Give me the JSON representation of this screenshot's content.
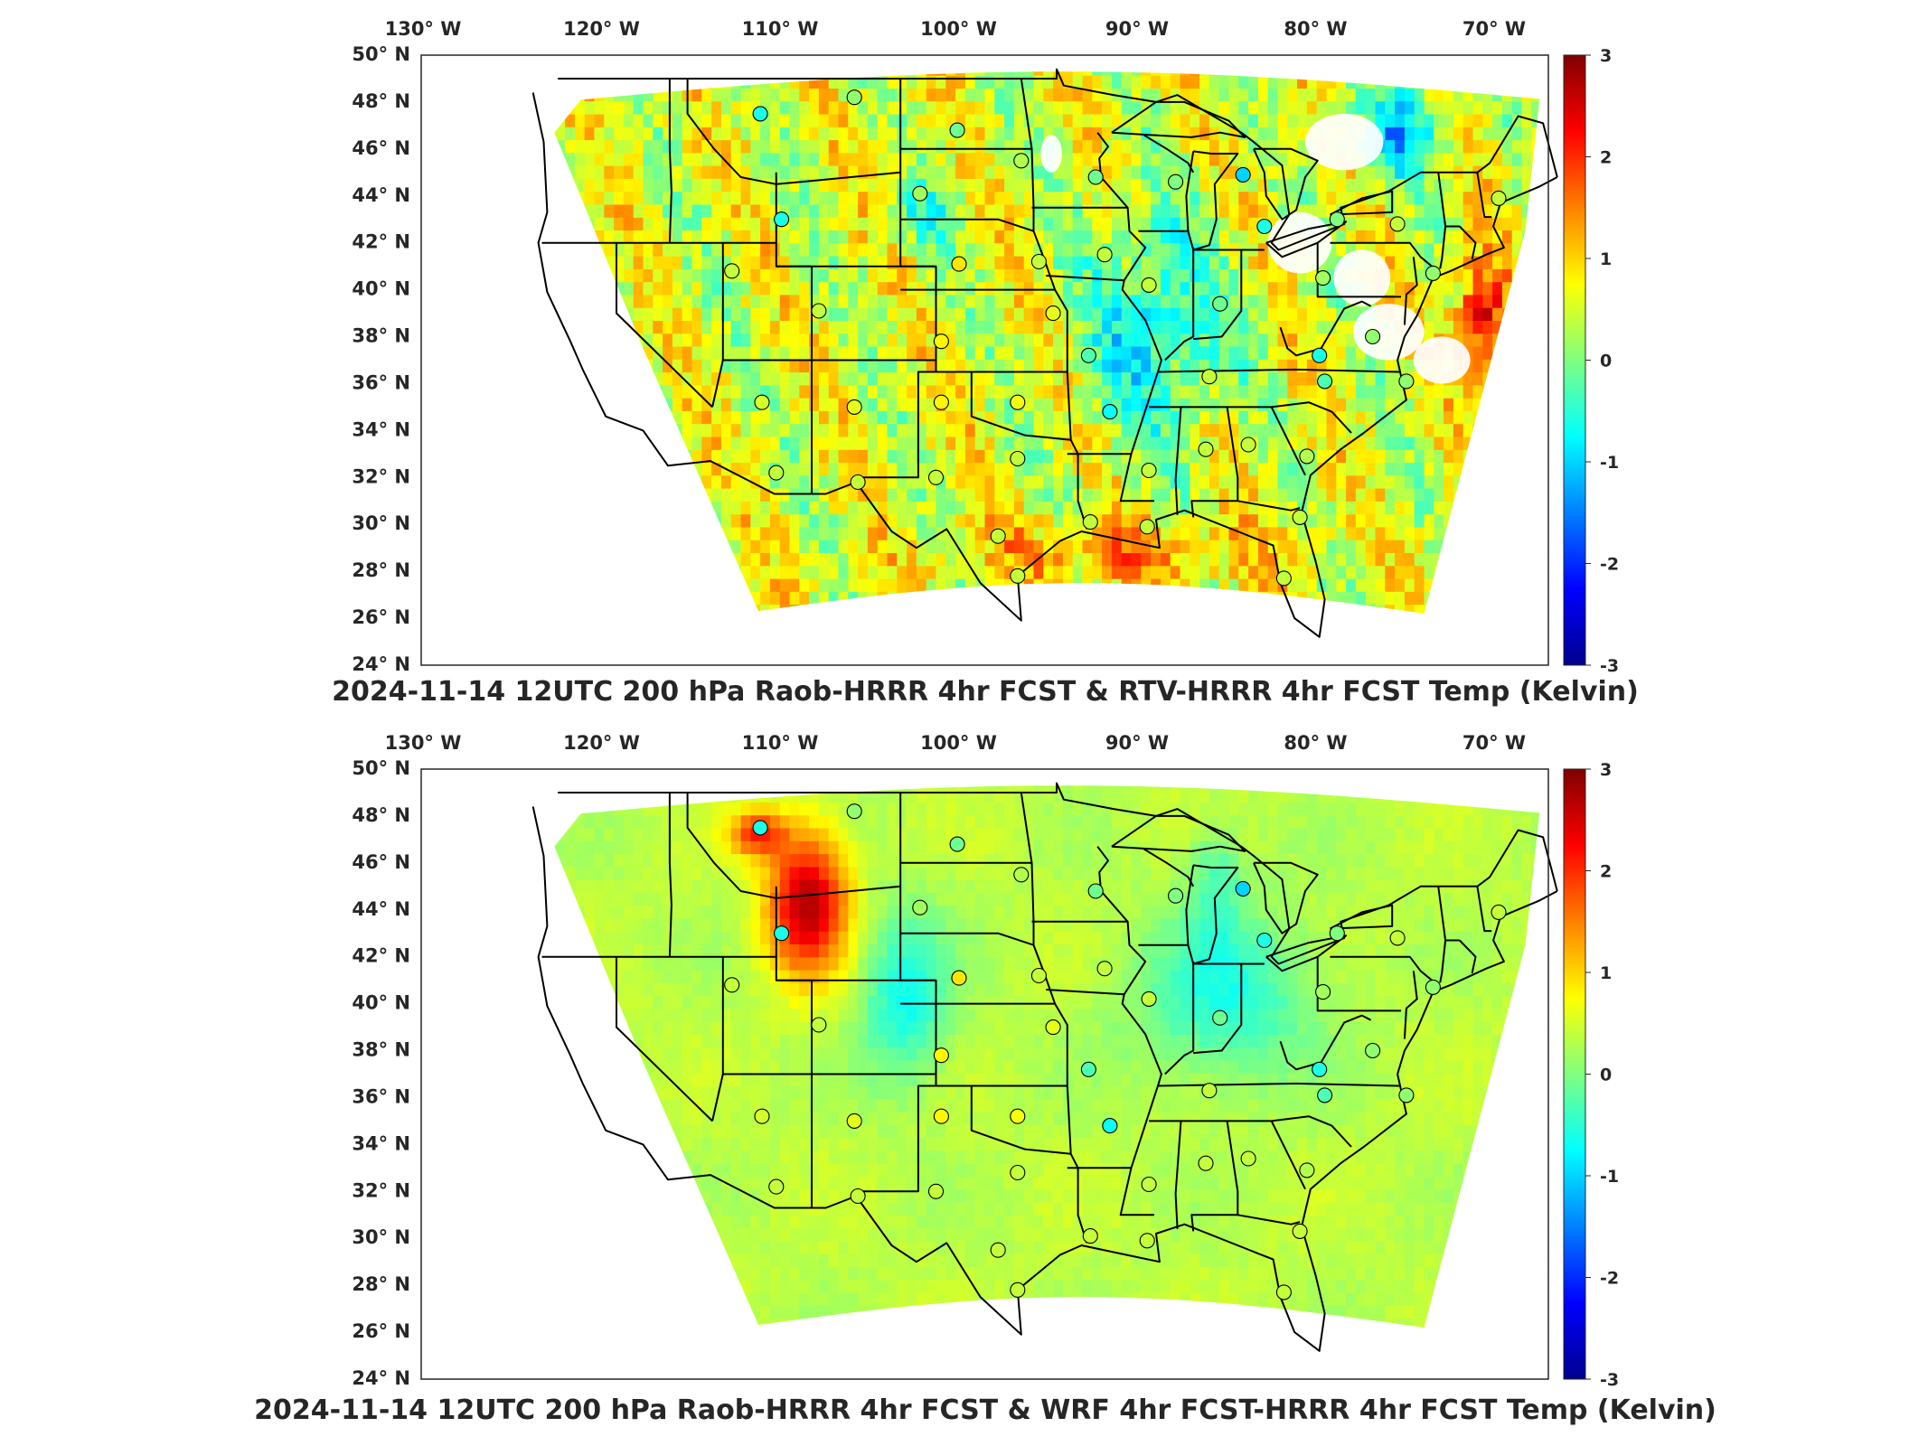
{
  "colormap": {
    "name": "jet",
    "stops": [
      "#00008f",
      "#0000ff",
      "#0080ff",
      "#00ffff",
      "#80ff80",
      "#ffff00",
      "#ff8000",
      "#ff0000",
      "#800000"
    ],
    "land_mask": "#ffffff",
    "border_color": "#000000"
  },
  "maps": [
    {
      "id": "top",
      "title": "2024-11-14 12UTC 200 hPa Raob-HRRR 4hr FCST & RTV-HRRR 4hr FCST Temp (Kelvin)",
      "lon_ticks": [
        "130° W",
        "120° W",
        "110° W",
        "100° W",
        "90° W",
        "80° W",
        "70° W"
      ],
      "lat_ticks": [
        "50° N",
        "48° N",
        "46° N",
        "44° N",
        "42° N",
        "40° N",
        "38° N",
        "36° N",
        "34° N",
        "32° N",
        "30° N",
        "28° N",
        "26° N",
        "24° N"
      ],
      "colorbar": {
        "min": -3,
        "max": 3,
        "ticks": [
          "3",
          "2",
          "1",
          "0",
          "-1",
          "-2",
          "-3"
        ]
      },
      "field_character": "noisy",
      "stations": [
        {
          "lon": -111.9,
          "lat": 47.5,
          "v": -0.6
        },
        {
          "lon": -106.6,
          "lat": 48.2,
          "v": 0.1
        },
        {
          "lon": -100.8,
          "lat": 46.8,
          "v": -0.1
        },
        {
          "lon": -97.2,
          "lat": 45.5,
          "v": 0.3
        },
        {
          "lon": -93.0,
          "lat": 44.8,
          "v": -0.1
        },
        {
          "lon": -88.5,
          "lat": 44.6,
          "v": 0.0
        },
        {
          "lon": -84.7,
          "lat": 44.9,
          "v": -1.0
        },
        {
          "lon": -110.7,
          "lat": 43.0,
          "v": -0.6
        },
        {
          "lon": -102.9,
          "lat": 44.1,
          "v": 0.2
        },
        {
          "lon": -83.5,
          "lat": 42.7,
          "v": -0.6
        },
        {
          "lon": -79.4,
          "lat": 43.0,
          "v": 0.0
        },
        {
          "lon": -76.0,
          "lat": 42.8,
          "v": 0.4
        },
        {
          "lon": -70.3,
          "lat": 43.9,
          "v": 0.4
        },
        {
          "lon": -113.5,
          "lat": 40.8,
          "v": 0.4
        },
        {
          "lon": -100.7,
          "lat": 41.1,
          "v": 0.9
        },
        {
          "lon": -96.2,
          "lat": 41.2,
          "v": 0.4
        },
        {
          "lon": -92.5,
          "lat": 41.5,
          "v": 0.4
        },
        {
          "lon": -90.0,
          "lat": 40.2,
          "v": 0.4
        },
        {
          "lon": -86.0,
          "lat": 39.4,
          "v": -0.1
        },
        {
          "lon": -80.2,
          "lat": 40.5,
          "v": 0.2
        },
        {
          "lon": -74.0,
          "lat": 40.7,
          "v": 0.1
        },
        {
          "lon": -108.6,
          "lat": 39.1,
          "v": 0.4
        },
        {
          "lon": -101.7,
          "lat": 37.8,
          "v": 0.8
        },
        {
          "lon": -95.4,
          "lat": 39.0,
          "v": 0.6
        },
        {
          "lon": -93.4,
          "lat": 37.2,
          "v": -0.3
        },
        {
          "lon": -80.4,
          "lat": 37.2,
          "v": -0.6
        },
        {
          "lon": -77.4,
          "lat": 38.0,
          "v": 0.1
        },
        {
          "lon": -86.6,
          "lat": 36.3,
          "v": 0.4
        },
        {
          "lon": -80.1,
          "lat": 36.1,
          "v": -0.3
        },
        {
          "lon": -75.5,
          "lat": 36.1,
          "v": 0.1
        },
        {
          "lon": -111.8,
          "lat": 35.2,
          "v": 0.5
        },
        {
          "lon": -106.6,
          "lat": 35.0,
          "v": 0.6
        },
        {
          "lon": -101.7,
          "lat": 35.2,
          "v": 0.8
        },
        {
          "lon": -97.4,
          "lat": 35.2,
          "v": 0.7
        },
        {
          "lon": -92.2,
          "lat": 34.8,
          "v": -0.7
        },
        {
          "lon": -86.8,
          "lat": 33.2,
          "v": 0.4
        },
        {
          "lon": -84.4,
          "lat": 33.4,
          "v": 0.4
        },
        {
          "lon": -81.1,
          "lat": 32.9,
          "v": 0.3
        },
        {
          "lon": -97.4,
          "lat": 32.8,
          "v": 0.4
        },
        {
          "lon": -90.0,
          "lat": 32.3,
          "v": 0.4
        },
        {
          "lon": -111.0,
          "lat": 32.2,
          "v": 0.4
        },
        {
          "lon": -106.4,
          "lat": 31.8,
          "v": 0.4
        },
        {
          "lon": -102.0,
          "lat": 32.0,
          "v": 0.4
        },
        {
          "lon": -93.3,
          "lat": 30.1,
          "v": 0.4
        },
        {
          "lon": -90.1,
          "lat": 29.9,
          "v": 0.4
        },
        {
          "lon": -98.5,
          "lat": 29.5,
          "v": 0.4
        },
        {
          "lon": -97.4,
          "lat": 27.8,
          "v": 0.4
        },
        {
          "lon": -82.4,
          "lat": 27.7,
          "v": 0.4
        },
        {
          "lon": -81.5,
          "lat": 30.3,
          "v": 0.4
        }
      ]
    },
    {
      "id": "bottom",
      "title": "2024-11-14 12UTC 200 hPa Raob-HRRR 4hr FCST & WRF 4hr FCST-HRRR 4hr FCST Temp (Kelvin)",
      "lon_ticks": [
        "130° W",
        "120° W",
        "110° W",
        "100° W",
        "90° W",
        "80° W",
        "70° W"
      ],
      "lat_ticks": [
        "50° N",
        "48° N",
        "46° N",
        "44° N",
        "42° N",
        "40° N",
        "38° N",
        "36° N",
        "34° N",
        "32° N",
        "30° N",
        "28° N",
        "26° N",
        "24° N"
      ],
      "colorbar": {
        "min": -3,
        "max": 3,
        "ticks": [
          "3",
          "2",
          "1",
          "0",
          "-1",
          "-2",
          "-3"
        ]
      },
      "field_character": "smooth",
      "stations": [
        {
          "lon": -111.9,
          "lat": 47.5,
          "v": -0.6
        },
        {
          "lon": -106.6,
          "lat": 48.2,
          "v": 0.1
        },
        {
          "lon": -100.8,
          "lat": 46.8,
          "v": -0.1
        },
        {
          "lon": -97.2,
          "lat": 45.5,
          "v": 0.3
        },
        {
          "lon": -93.0,
          "lat": 44.8,
          "v": -0.1
        },
        {
          "lon": -88.5,
          "lat": 44.6,
          "v": 0.0
        },
        {
          "lon": -84.7,
          "lat": 44.9,
          "v": -1.0
        },
        {
          "lon": -110.7,
          "lat": 43.0,
          "v": -0.6
        },
        {
          "lon": -102.9,
          "lat": 44.1,
          "v": 0.2
        },
        {
          "lon": -83.5,
          "lat": 42.7,
          "v": -0.6
        },
        {
          "lon": -79.4,
          "lat": 43.0,
          "v": 0.0
        },
        {
          "lon": -76.0,
          "lat": 42.8,
          "v": 0.4
        },
        {
          "lon": -70.3,
          "lat": 43.9,
          "v": 0.4
        },
        {
          "lon": -113.5,
          "lat": 40.8,
          "v": 0.4
        },
        {
          "lon": -100.7,
          "lat": 41.1,
          "v": 0.9
        },
        {
          "lon": -96.2,
          "lat": 41.2,
          "v": 0.4
        },
        {
          "lon": -92.5,
          "lat": 41.5,
          "v": 0.4
        },
        {
          "lon": -90.0,
          "lat": 40.2,
          "v": 0.4
        },
        {
          "lon": -86.0,
          "lat": 39.4,
          "v": -0.1
        },
        {
          "lon": -80.2,
          "lat": 40.5,
          "v": 0.2
        },
        {
          "lon": -74.0,
          "lat": 40.7,
          "v": 0.1
        },
        {
          "lon": -108.6,
          "lat": 39.1,
          "v": 0.4
        },
        {
          "lon": -101.7,
          "lat": 37.8,
          "v": 0.8
        },
        {
          "lon": -95.4,
          "lat": 39.0,
          "v": 0.6
        },
        {
          "lon": -93.4,
          "lat": 37.2,
          "v": -0.3
        },
        {
          "lon": -80.4,
          "lat": 37.2,
          "v": -0.6
        },
        {
          "lon": -77.4,
          "lat": 38.0,
          "v": 0.1
        },
        {
          "lon": -86.6,
          "lat": 36.3,
          "v": 0.4
        },
        {
          "lon": -80.1,
          "lat": 36.1,
          "v": -0.3
        },
        {
          "lon": -75.5,
          "lat": 36.1,
          "v": 0.1
        },
        {
          "lon": -111.8,
          "lat": 35.2,
          "v": 0.5
        },
        {
          "lon": -106.6,
          "lat": 35.0,
          "v": 0.6
        },
        {
          "lon": -101.7,
          "lat": 35.2,
          "v": 0.8
        },
        {
          "lon": -97.4,
          "lat": 35.2,
          "v": 0.7
        },
        {
          "lon": -92.2,
          "lat": 34.8,
          "v": -0.7
        },
        {
          "lon": -86.8,
          "lat": 33.2,
          "v": 0.4
        },
        {
          "lon": -84.4,
          "lat": 33.4,
          "v": 0.4
        },
        {
          "lon": -81.1,
          "lat": 32.9,
          "v": 0.3
        },
        {
          "lon": -97.4,
          "lat": 32.8,
          "v": 0.4
        },
        {
          "lon": -90.0,
          "lat": 32.3,
          "v": 0.4
        },
        {
          "lon": -111.0,
          "lat": 32.2,
          "v": 0.4
        },
        {
          "lon": -106.4,
          "lat": 31.8,
          "v": 0.4
        },
        {
          "lon": -102.0,
          "lat": 32.0,
          "v": 0.4
        },
        {
          "lon": -93.3,
          "lat": 30.1,
          "v": 0.4
        },
        {
          "lon": -90.1,
          "lat": 29.9,
          "v": 0.4
        },
        {
          "lon": -98.5,
          "lat": 29.5,
          "v": 0.4
        },
        {
          "lon": -97.4,
          "lat": 27.8,
          "v": 0.4
        },
        {
          "lon": -82.4,
          "lat": 27.7,
          "v": 0.4
        },
        {
          "lon": -81.5,
          "lat": 30.3,
          "v": 0.4
        }
      ]
    }
  ]
}
